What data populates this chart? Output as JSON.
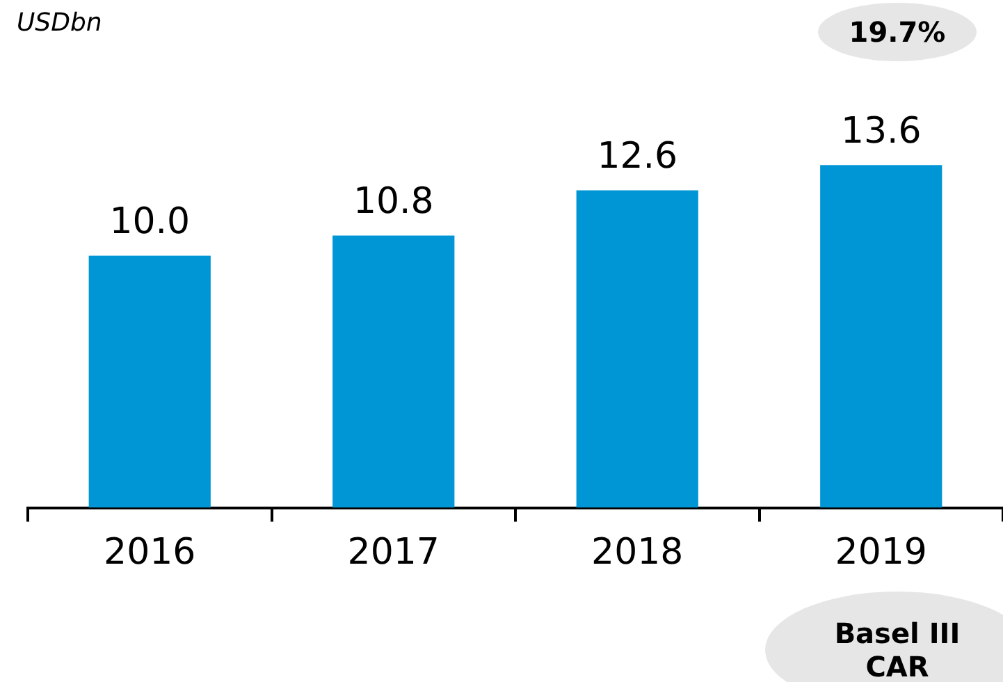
{
  "chart_data": {
    "type": "bar",
    "categories": [
      "2016",
      "2017",
      "2018",
      "2019"
    ],
    "values": [
      10.0,
      10.8,
      12.6,
      13.6
    ],
    "color": "#0096d6",
    "value_labels": [
      "10.0",
      "10.8",
      "12.6",
      "13.6"
    ],
    "grid": false,
    "legend": false,
    "tick_labels": "x",
    "annotations": [
      "USDbn",
      "19.7%",
      "Basel III CAR"
    ]
  }
}
